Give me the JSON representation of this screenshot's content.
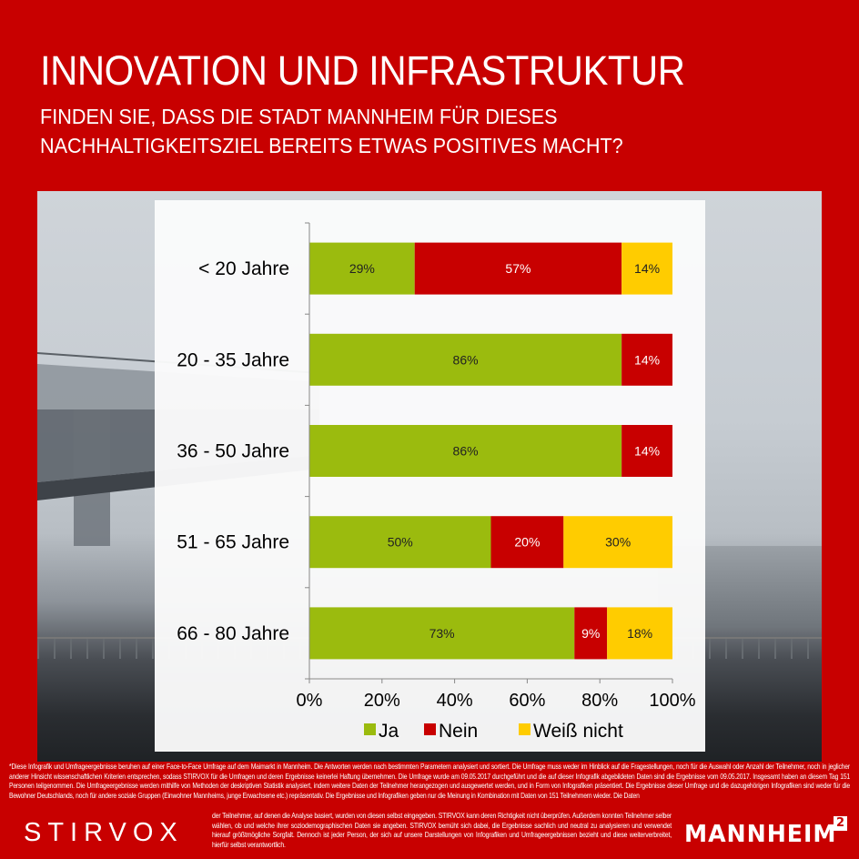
{
  "header": {
    "title": "INNOVATION UND INFRASTRUKTUR",
    "subtitle_line1": "FINDEN SIE, DASS DIE STADT MANNHEIM FÜR DIESES",
    "subtitle_line2": "NACHHALTIGKEITSZIEL BEREITS ETWAS POSITIVES MACHT?"
  },
  "colors": {
    "brand_red": "#c80000",
    "ja": "#9bbb0e",
    "nein": "#c80000",
    "weiss_nicht": "#ffcc00"
  },
  "chart_data": {
    "type": "bar",
    "orientation": "horizontal",
    "stacked": true,
    "percent_stacked": true,
    "categories": [
      "< 20 Jahre",
      "20 - 35 Jahre",
      "36 - 50 Jahre",
      "51 - 65 Jahre",
      "66 - 80 Jahre"
    ],
    "series": [
      {
        "name": "Ja",
        "color": "#9bbb0e",
        "values": [
          29,
          86,
          86,
          50,
          73
        ],
        "labels": [
          "29%",
          "86%",
          "86%",
          "50%",
          "73%"
        ]
      },
      {
        "name": "Nein",
        "color": "#c80000",
        "values": [
          57,
          14,
          14,
          20,
          9
        ],
        "labels": [
          "57%",
          "14%",
          "14%",
          "20%",
          "9%"
        ]
      },
      {
        "name": "Weiß nicht",
        "color": "#ffcc00",
        "values": [
          14,
          0,
          0,
          30,
          18
        ],
        "labels": [
          "14%",
          "",
          "",
          "30%",
          "18%"
        ]
      }
    ],
    "xlim": [
      0,
      100
    ],
    "xticks": [
      "0%",
      "20%",
      "40%",
      "60%",
      "80%",
      "100%"
    ],
    "legend_position": "bottom",
    "grid": false,
    "title": "",
    "xlabel": "",
    "ylabel": ""
  },
  "footer": {
    "disclaimer_main": "*Diese Infografik und Umfrageergebnisse beruhen auf einer Face-to-Face Umfrage auf dem Maimarkt in Mannheim. Die Antworten werden nach bestimmten Parametern analysiert und sortiert. Die Umfrage muss weder im Hinblick auf die Fragestellungen, noch für die Auswahl oder Anzahl der Teilnehmer, noch in jeglicher anderer Hinsicht wissenschaftlichen Kriterien entsprechen, sodass STIRVOX für die Umfragen und deren Ergebnisse keinerlei Haftung übernehmen. Die Umfrage wurde am 09.05.2017 durchgeführt und die auf dieser Infografik abgebildeten Daten sind die Ergebnisse vom 09.05.2017. Insgesamt haben an diesem Tag 151 Personen teilgenommen. Die Umfrageergebnisse werden mithilfe von Methoden der deskriptiven Statistik analysiert, indem weitere Daten der Teilnehmer herangezogen und ausgewertet werden, und in Form von Infografiken präsentiert. Die Ergebnisse dieser Umfrage und die dazugehörigen Infografiken sind weder für die Bewohner Deutschlands, noch für andere soziale Gruppen (Einwohner Mannheims, junge Erwachsene etc.) repräsentativ. Die Ergebnisse und Infografiken geben nur die Meinung in Kombination mit Daten von 151 Teilnehmern wieder. Die Daten",
    "disclaimer_tail": "der Teilnehmer, auf denen die Analyse basiert, wurden von diesen selbst eingegeben. STIRVOX kann deren Richtigkeit nicht überprüfen. Außerdem konnten Teilnehmer selber wählen, ob und welche ihrer soziodemographischen Daten sie angeben. STIRVOX bemüht sich dabei, die Ergebnisse sachlich und neutral zu analysieren und verwendet hierauf größtmögliche Sorgfalt. Dennoch ist jeder Person, der sich auf unsere Darstellungen von Infografiken und Umfrageergebnissen bezieht und diese weiterverbreitet, hierfür selbst verantwortlich.",
    "logo_left": "STIRVOX",
    "logo_right": "MANNHEIM",
    "logo_right_sup": "2"
  }
}
